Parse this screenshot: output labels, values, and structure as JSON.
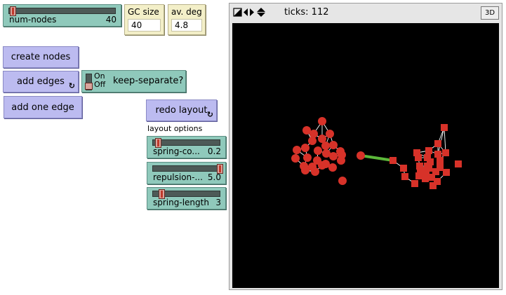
{
  "sliders": {
    "num_nodes": {
      "label": "num-nodes",
      "value": "40",
      "fraction": 0.03
    },
    "spring_constant": {
      "label": "spring-co...",
      "value": "0.2",
      "fraction": 0.04
    },
    "repulsion": {
      "label": "repulsion-...",
      "value": "5.0",
      "fraction": 1.0
    },
    "spring_length": {
      "label": "spring-length",
      "value": "3",
      "fraction": 0.1
    }
  },
  "monitors": {
    "gc_size": {
      "label": "GC size",
      "value": "40"
    },
    "av_deg": {
      "label": "av. deg",
      "value": "4.8"
    }
  },
  "buttons": {
    "create_nodes": "create nodes",
    "add_edges": "add edges",
    "add_one_edge": "add one edge",
    "redo_layout": "redo layout",
    "forever_glyph": "↻"
  },
  "switch": {
    "on_label": "On",
    "off_label": "Off",
    "label": "keep-separate?",
    "state": "off"
  },
  "layout_options_label": "layout options",
  "view": {
    "ticks_label": "ticks: 112",
    "btn_3d": "3D",
    "node_color": "#d73229",
    "link_color": "#ffffff",
    "bridge_color": "#5cb83a"
  }
}
